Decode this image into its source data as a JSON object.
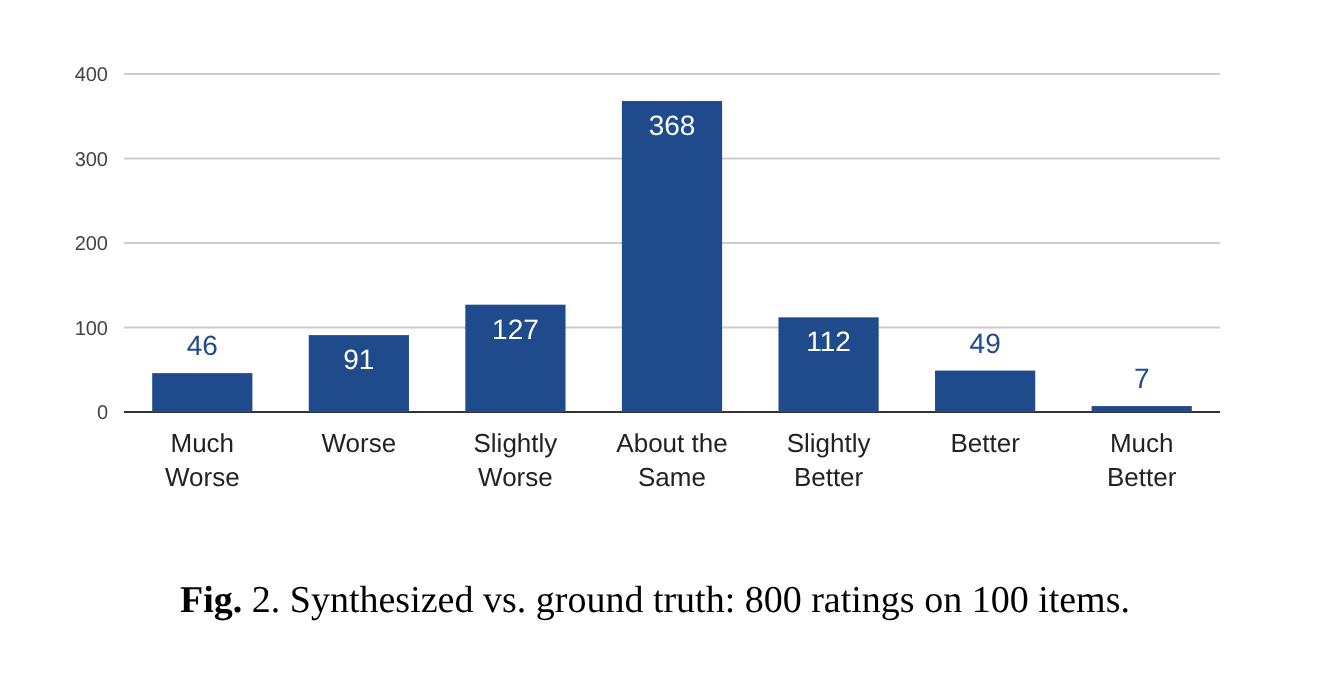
{
  "chart_data": {
    "type": "bar",
    "title": "Fig. 2. Synthesized vs. ground truth: 800 ratings on 100 items.",
    "categories": [
      "Much Worse",
      "Worse",
      "Slightly Worse",
      "About the Same",
      "Slightly Better",
      "Better",
      "Much Better"
    ],
    "values": [
      46,
      91,
      127,
      368,
      112,
      49,
      7
    ],
    "color": "#1f4a8c",
    "ylim": [
      0,
      400
    ],
    "yticks": [
      0,
      100,
      200,
      300,
      400
    ],
    "grid": "y",
    "data_labels": true
  }
}
